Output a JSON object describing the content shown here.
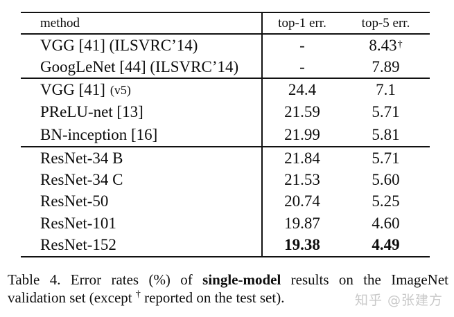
{
  "table": {
    "header": {
      "method": "method",
      "top1": "top-1 err.",
      "top5": "top-5 err."
    },
    "sections": [
      {
        "rows": [
          {
            "method": "VGG [41] (ILSVRC’14)",
            "top1": "-",
            "top5": "8.43",
            "top5_sup": "†"
          },
          {
            "method": "GoogLeNet [44] (ILSVRC’14)",
            "top1": "-",
            "top5": "7.89"
          }
        ]
      },
      {
        "rows": [
          {
            "method": "VGG [41]",
            "method_small": "(v5)",
            "top1": "24.4",
            "top5": "7.1"
          },
          {
            "method": "PReLU-net [13]",
            "top1": "21.59",
            "top5": "5.71"
          },
          {
            "method": "BN-inception [16]",
            "top1": "21.99",
            "top5": "5.81"
          }
        ]
      },
      {
        "rows": [
          {
            "method": "ResNet-34 B",
            "top1": "21.84",
            "top5": "5.71"
          },
          {
            "method": "ResNet-34 C",
            "top1": "21.53",
            "top5": "5.60"
          },
          {
            "method": "ResNet-50",
            "top1": "20.74",
            "top5": "5.25"
          },
          {
            "method": "ResNet-101",
            "top1": "19.87",
            "top5": "4.60"
          },
          {
            "method": "ResNet-152",
            "top1": "19.38",
            "top5": "4.49"
          }
        ]
      }
    ]
  },
  "caption": {
    "line1": {
      "pre": "Table 4. Error rates (%) of ",
      "bold": "single-model",
      "post": " results on the ImageNet"
    },
    "line2": {
      "pre": "validation set (except ",
      "dagger": "†",
      "post": " reported on the test set)."
    }
  },
  "watermark": {
    "text": "知乎 @张建方",
    "color": "#c9c9c9"
  }
}
